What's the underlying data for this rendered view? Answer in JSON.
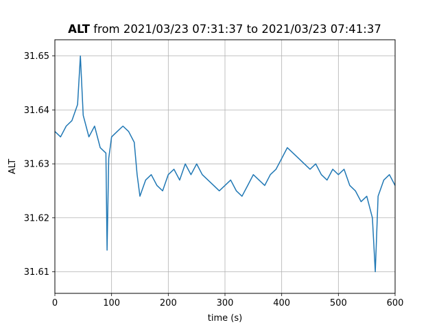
{
  "chart_data": {
    "type": "line",
    "title_bold": "ALT",
    "title_rest": " from 2021/03/23 07:31:37 to 2021/03/23 07:41:37",
    "xlabel": "time (s)",
    "ylabel": "ALT",
    "xlim": [
      0,
      600
    ],
    "ylim": [
      31.606,
      31.653
    ],
    "xticks": [
      0,
      100,
      200,
      300,
      400,
      500,
      600
    ],
    "xtick_labels": [
      "0",
      "100",
      "200",
      "300",
      "400",
      "500",
      "600"
    ],
    "yticks": [
      31.61,
      31.62,
      31.63,
      31.64,
      31.65
    ],
    "ytick_labels": [
      "31.61",
      "31.62",
      "31.63",
      "31.64",
      "31.65"
    ],
    "grid": true,
    "line_color": "#1f77b4",
    "series": [
      {
        "x": [
          0,
          10,
          20,
          30,
          40,
          45,
          50,
          60,
          70,
          80,
          90,
          92,
          95,
          100,
          110,
          120,
          130,
          140,
          145,
          150,
          160,
          170,
          180,
          190,
          200,
          210,
          220,
          230,
          240,
          250,
          260,
          270,
          280,
          290,
          300,
          310,
          320,
          330,
          340,
          350,
          360,
          370,
          380,
          390,
          400,
          410,
          420,
          430,
          440,
          450,
          460,
          470,
          480,
          490,
          500,
          510,
          520,
          530,
          540,
          550,
          560,
          565,
          570,
          580,
          590,
          600
        ],
        "y": [
          31.636,
          31.635,
          31.637,
          31.638,
          31.641,
          31.65,
          31.639,
          31.635,
          31.637,
          31.633,
          31.632,
          31.614,
          31.631,
          31.635,
          31.636,
          31.637,
          31.636,
          31.634,
          31.628,
          31.624,
          31.627,
          31.628,
          31.626,
          31.625,
          31.628,
          31.629,
          31.627,
          31.63,
          31.628,
          31.63,
          31.628,
          31.627,
          31.626,
          31.625,
          31.626,
          31.627,
          31.625,
          31.624,
          31.626,
          31.628,
          31.627,
          31.626,
          31.628,
          31.629,
          31.631,
          31.633,
          31.632,
          31.631,
          31.63,
          31.629,
          31.63,
          31.628,
          31.627,
          31.629,
          31.628,
          31.629,
          31.626,
          31.625,
          31.623,
          31.624,
          31.62,
          31.61,
          31.624,
          31.627,
          31.628,
          31.626
        ]
      }
    ]
  }
}
